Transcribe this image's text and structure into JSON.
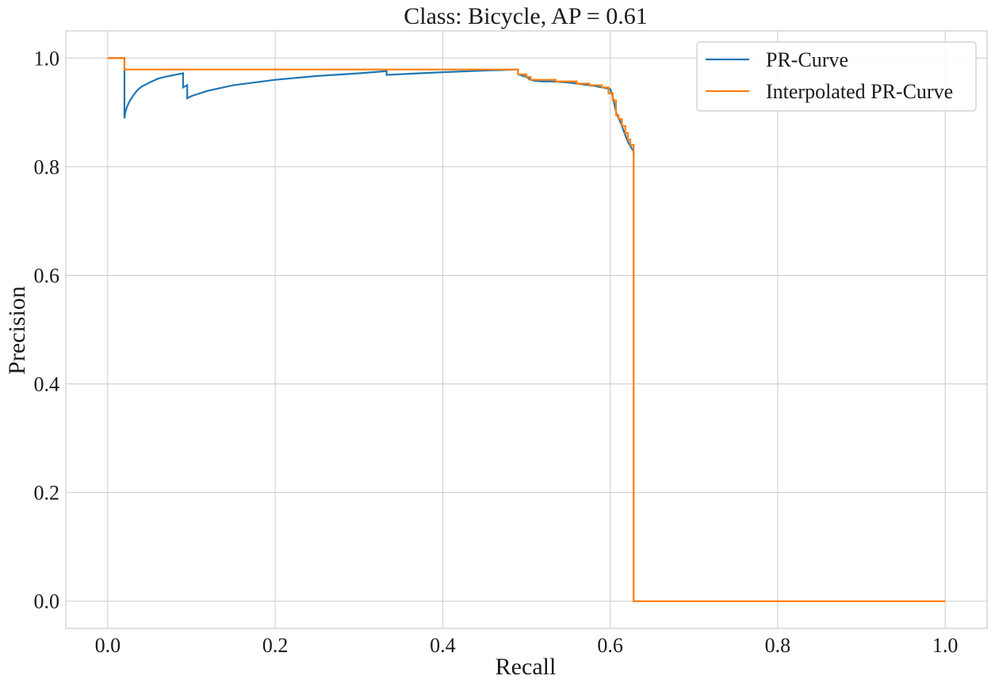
{
  "chart_data": {
    "type": "line",
    "title": "Class: Bicycle, AP = 0.61",
    "xlabel": "Recall",
    "ylabel": "Precision",
    "xlim": [
      -0.05,
      1.05
    ],
    "ylim": [
      -0.05,
      1.05
    ],
    "xticks": [
      0.0,
      0.2,
      0.4,
      0.6,
      0.8,
      1.0
    ],
    "xtick_labels": [
      "0.0",
      "0.2",
      "0.4",
      "0.6",
      "0.8",
      "1.0"
    ],
    "yticks": [
      0.0,
      0.2,
      0.4,
      0.6,
      0.8,
      1.0
    ],
    "ytick_labels": [
      "0.0",
      "0.2",
      "0.4",
      "0.6",
      "0.8",
      "1.0"
    ],
    "grid": true,
    "legend_position": "top-right",
    "series": [
      {
        "name": "PR-Curve",
        "color": "#1f77b4",
        "x": [
          0.0,
          0.02,
          0.02,
          0.021,
          0.023,
          0.026,
          0.03,
          0.035,
          0.04,
          0.05,
          0.06,
          0.07,
          0.08,
          0.09,
          0.09,
          0.095,
          0.095,
          0.1,
          0.12,
          0.15,
          0.2,
          0.25,
          0.3,
          0.333,
          0.333,
          0.4,
          0.45,
          0.49,
          0.49,
          0.5,
          0.505,
          0.51,
          0.52,
          0.53,
          0.54,
          0.55,
          0.56,
          0.57,
          0.58,
          0.59,
          0.6,
          0.602,
          0.604,
          0.606,
          0.608,
          0.61,
          0.612,
          0.614,
          0.616,
          0.618,
          0.62,
          0.622,
          0.624,
          0.626,
          0.628,
          0.628
        ],
        "y": [
          1.0,
          1.0,
          0.889,
          0.9,
          0.91,
          0.92,
          0.93,
          0.94,
          0.947,
          0.955,
          0.962,
          0.966,
          0.969,
          0.972,
          0.946,
          0.95,
          0.926,
          0.93,
          0.94,
          0.95,
          0.96,
          0.967,
          0.972,
          0.976,
          0.969,
          0.974,
          0.977,
          0.979,
          0.97,
          0.965,
          0.96,
          0.958,
          0.957,
          0.957,
          0.956,
          0.955,
          0.953,
          0.951,
          0.949,
          0.946,
          0.943,
          0.935,
          0.922,
          0.908,
          0.895,
          0.89,
          0.883,
          0.875,
          0.866,
          0.858,
          0.85,
          0.843,
          0.838,
          0.833,
          0.828,
          0.818
        ]
      },
      {
        "name": "Interpolated PR-Curve",
        "color": "#ff7f0e",
        "x": [
          0.0,
          0.02,
          0.02,
          0.49,
          0.49,
          0.5,
          0.5,
          0.505,
          0.505,
          0.535,
          0.535,
          0.56,
          0.56,
          0.575,
          0.575,
          0.59,
          0.59,
          0.598,
          0.598,
          0.603,
          0.603,
          0.607,
          0.607,
          0.61,
          0.61,
          0.614,
          0.614,
          0.618,
          0.618,
          0.621,
          0.621,
          0.624,
          0.624,
          0.628,
          0.628,
          1.0
        ],
        "y": [
          1.0,
          1.0,
          0.979,
          0.979,
          0.97,
          0.97,
          0.965,
          0.965,
          0.96,
          0.96,
          0.957,
          0.957,
          0.953,
          0.953,
          0.95,
          0.95,
          0.946,
          0.946,
          0.935,
          0.935,
          0.922,
          0.922,
          0.895,
          0.895,
          0.888,
          0.888,
          0.875,
          0.875,
          0.862,
          0.862,
          0.85,
          0.85,
          0.84,
          0.84,
          0.0,
          0.0
        ]
      }
    ]
  }
}
